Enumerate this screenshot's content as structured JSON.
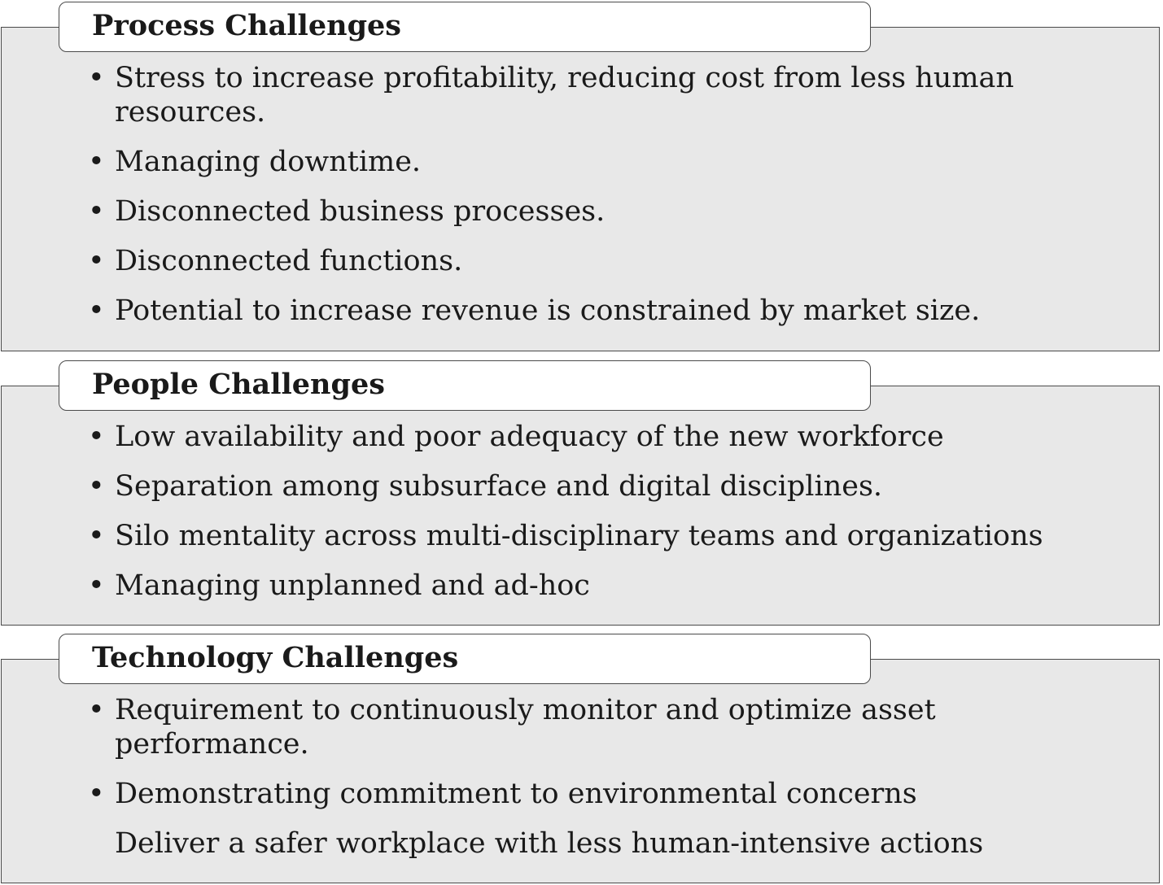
{
  "sections": [
    {
      "title": "Process Challenges",
      "items": [
        {
          "text": "Stress to increase profitability, reducing cost from less human",
          "text2": "resources.",
          "bullet": "•"
        },
        {
          "text": "Managing downtime.",
          "bullet": "•"
        },
        {
          "text": "Disconnected business processes.",
          "bullet": "•"
        },
        {
          "text": "Disconnected functions.",
          "bullet": "•"
        },
        {
          "text": "Potential to increase revenue is constrained by market size.",
          "bullet": "•"
        }
      ]
    },
    {
      "title": "People Challenges",
      "items": [
        {
          "text": "Low availability and poor adequacy of the new workforce",
          "bullet": "•"
        },
        {
          "text": "Separation among subsurface and digital disciplines.",
          "bullet": "•"
        },
        {
          "text": "Silo mentality across multi-disciplinary teams and organizations",
          "bullet": "•"
        },
        {
          "text": "Managing unplanned and ad-hoc",
          "bullet": "•"
        }
      ]
    },
    {
      "title": "Technology Challenges",
      "items": [
        {
          "text": "Requirement to continuously monitor and optimize asset",
          "text2": "performance.",
          "bullet": "•"
        },
        {
          "text": "Demonstrating commitment to environmental concerns",
          "bullet": "•"
        },
        {
          "text": "Deliver a safer workplace with less human-intensive actions",
          "bullet": ""
        }
      ]
    }
  ],
  "colors": {
    "panel_bg": "#e8e8e8",
    "tab_bg": "#ffffff",
    "border": "#4a4a4a",
    "text": "#1a1a1a"
  }
}
